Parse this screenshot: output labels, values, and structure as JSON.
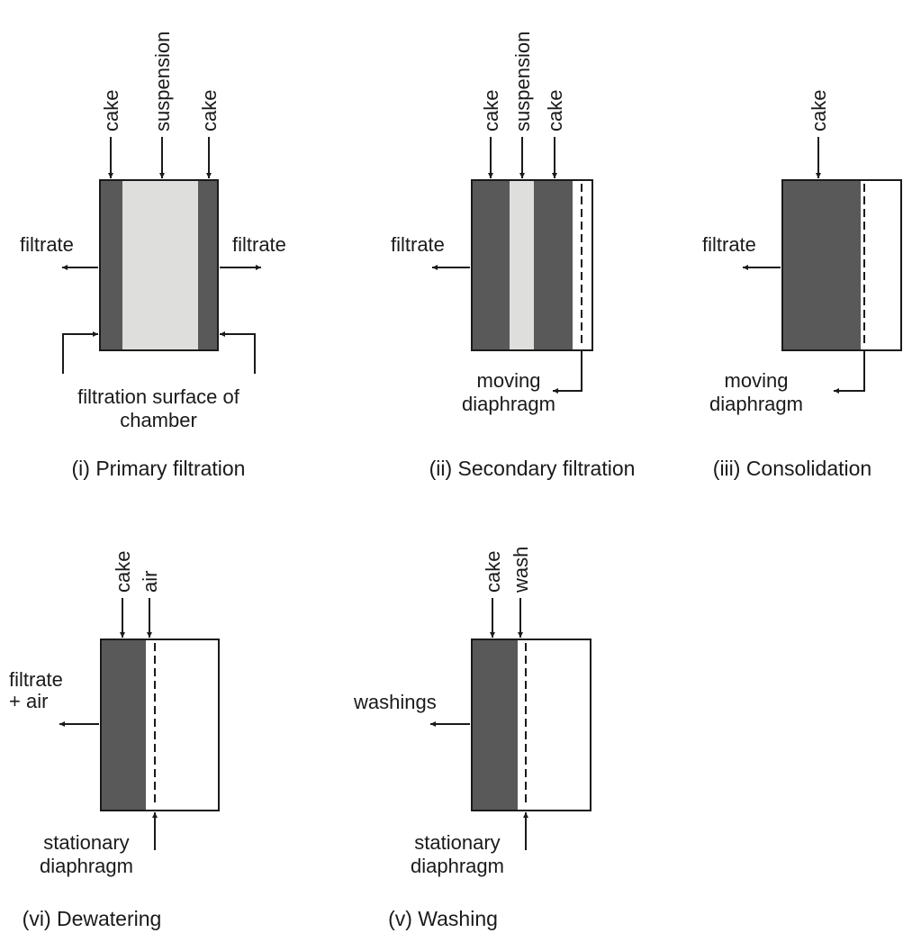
{
  "colors": {
    "cake": "#595959",
    "suspension": "#dedfdc",
    "ink": "#1a1a1a"
  },
  "panel1": {
    "cake_left": "cake",
    "suspension": "suspension",
    "cake_right": "cake",
    "filtrate_left": "filtrate",
    "filtrate_right": "filtrate",
    "surface_line1": "filtration surface of",
    "surface_line2": "chamber",
    "caption": "(i) Primary filtration"
  },
  "panel2": {
    "cake_left": "cake",
    "suspension": "suspension",
    "cake_right": "cake",
    "filtrate": "filtrate",
    "diaphragm_line1": "moving",
    "diaphragm_line2": "diaphragm",
    "caption": "(ii) Secondary filtration"
  },
  "panel3": {
    "cake": "cake",
    "filtrate": "filtrate",
    "diaphragm_line1": "moving",
    "diaphragm_line2": "diaphragm",
    "caption": "(iii) Consolidation"
  },
  "panel4": {
    "cake": "cake",
    "air": "air",
    "filtrate_line1": "filtrate",
    "filtrate_line2": "+ air",
    "diaphragm_line1": "stationary",
    "diaphragm_line2": "diaphragm",
    "caption": "(vi) Dewatering"
  },
  "panel5": {
    "cake": "cake",
    "wash": "wash",
    "washings": "washings",
    "diaphragm_line1": "stationary",
    "diaphragm_line2": "diaphragm",
    "caption": "(v) Washing"
  }
}
